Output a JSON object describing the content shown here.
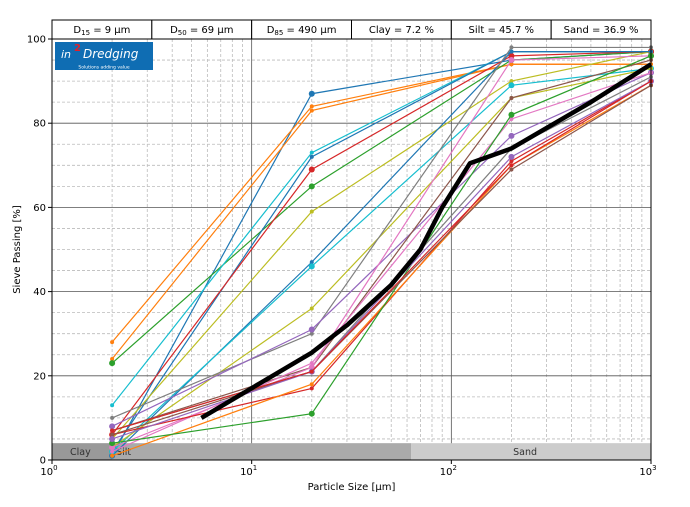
{
  "header_cells": [
    {
      "sym": "D",
      "sub": "15",
      "rest": " = 9 μm"
    },
    {
      "sym": "D",
      "sub": "50",
      "rest": " = 69 μm"
    },
    {
      "sym": "D",
      "sub": "85",
      "rest": " = 490 μm"
    },
    {
      "sym": "",
      "sub": "",
      "rest": "Clay = 7.2 %"
    },
    {
      "sym": "",
      "sub": "",
      "rest": "Silt = 45.7 %"
    },
    {
      "sym": "",
      "sub": "",
      "rest": "Sand = 36.9 %"
    }
  ],
  "logo": {
    "text_pre": "in",
    "text_sup": "2",
    "text_main": "Dredging",
    "tagline": "Solutions adding value",
    "bg": "#0f6db3"
  },
  "chart_data": {
    "type": "line",
    "xlabel": "Particle Size [μm]",
    "ylabel": "Sieve Passing [%]",
    "xscale": "log",
    "xlim": [
      1,
      1000
    ],
    "ylim": [
      0,
      100
    ],
    "xticks": [
      {
        "v": 1,
        "base": "10",
        "exp": "0"
      },
      {
        "v": 10,
        "base": "10",
        "exp": "1"
      },
      {
        "v": 100,
        "base": "10",
        "exp": "2"
      },
      {
        "v": 1000,
        "base": "10",
        "exp": "3"
      }
    ],
    "yticks": [
      0,
      20,
      40,
      60,
      80,
      100
    ],
    "grid": true,
    "bands": [
      {
        "label": "Clay",
        "from": 1,
        "to": 2,
        "color": "#999999"
      },
      {
        "label": "Silt",
        "from": 2,
        "to": 63,
        "color": "#aaaaaa"
      },
      {
        "label": "Sand",
        "from": 63,
        "to": 1000,
        "color": "#cccccc"
      }
    ],
    "band_height_pct": 4,
    "x": [
      2,
      20,
      200,
      1000
    ],
    "series": [
      {
        "color": "#1f77b4",
        "values": [
          1,
          87,
          95,
          97
        ]
      },
      {
        "color": "#ff7f0e",
        "values": [
          28,
          84,
          94,
          94
        ]
      },
      {
        "color": "#ff7f0e",
        "values": [
          24,
          83,
          94,
          94
        ]
      },
      {
        "color": "#2ca02c",
        "values": [
          23,
          65,
          95,
          97
        ]
      },
      {
        "color": "#17becf",
        "values": [
          13,
          73,
          97,
          97
        ]
      },
      {
        "color": "#1f77b4",
        "values": [
          2,
          72,
          97,
          97
        ]
      },
      {
        "color": "#d62728",
        "values": [
          6,
          69,
          96,
          97
        ]
      },
      {
        "color": "#bcbd22",
        "values": [
          5,
          59,
          90,
          97
        ]
      },
      {
        "color": "#1f77b4",
        "values": [
          1,
          47,
          97,
          97
        ]
      },
      {
        "color": "#17becf",
        "values": [
          2,
          46,
          89,
          93
        ]
      },
      {
        "color": "#bcbd22",
        "values": [
          3,
          36,
          86,
          93
        ]
      },
      {
        "color": "#7f7f7f",
        "values": [
          10,
          30,
          98,
          98
        ]
      },
      {
        "color": "#9467bd",
        "values": [
          8,
          31,
          77,
          92
        ]
      },
      {
        "color": "#8c564b",
        "values": [
          7,
          22,
          86,
          95
        ]
      },
      {
        "color": "#e377c2",
        "values": [
          2,
          23,
          81,
          92
        ]
      },
      {
        "color": "#e377c2",
        "values": [
          3,
          22,
          95,
          96
        ]
      },
      {
        "color": "#d62728",
        "values": [
          6,
          17,
          71,
          90
        ]
      },
      {
        "color": "#ff7f0e",
        "values": [
          1,
          18,
          70,
          89
        ]
      },
      {
        "color": "#2ca02c",
        "values": [
          4,
          11,
          82,
          96
        ]
      },
      {
        "color": "#7f7f7f",
        "values": [
          7,
          21,
          74,
          91
        ]
      },
      {
        "color": "#8c564b",
        "values": [
          6,
          21,
          69,
          89
        ]
      },
      {
        "color": "#9467bd",
        "values": [
          5,
          21,
          72,
          90
        ]
      },
      {
        "color": "#d62728",
        "values": [
          7,
          21,
          70,
          90
        ]
      }
    ],
    "average": {
      "color": "#000000",
      "x": [
        5.6,
        20,
        30,
        50,
        70,
        90,
        124,
        200,
        500,
        1000
      ],
      "values": [
        10,
        25.5,
        32,
        41.6,
        50,
        60,
        70.5,
        74,
        85,
        94
      ]
    }
  }
}
